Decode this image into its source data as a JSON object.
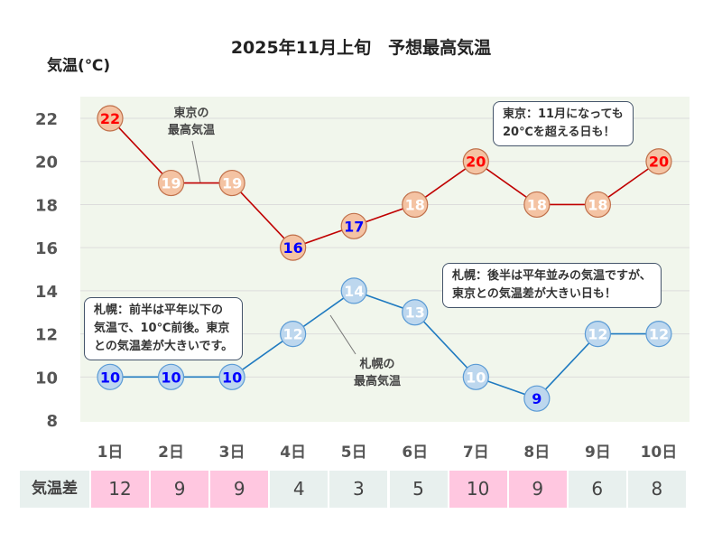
{
  "chart_data": {
    "type": "line",
    "title": "2025年11月上旬　予想最高気温",
    "ylabel": "気温(℃)",
    "ylim": [
      8,
      22
    ],
    "yticks": [
      8,
      10,
      12,
      14,
      16,
      18,
      20,
      22
    ],
    "grid": true,
    "categories": [
      "1日",
      "2日",
      "3日",
      "4日",
      "5日",
      "6日",
      "7日",
      "8日",
      "9日",
      "10日"
    ],
    "series": [
      {
        "name": "東京の\n最高気温",
        "values": [
          22,
          19,
          19,
          16,
          17,
          18,
          20,
          18,
          18,
          20
        ],
        "color": "#c00000",
        "marker_fill": "#f4c3a3",
        "marker_stroke": "#c0704a",
        "label_colors": [
          "#ff0000",
          "#ffffff",
          "#ffffff",
          "#0000ff",
          "#0000ff",
          "#ffffff",
          "#ff0000",
          "#ffffff",
          "#ffffff",
          "#ff0000"
        ]
      },
      {
        "name": "札幌の\n最高気温",
        "values": [
          10,
          10,
          10,
          12,
          14,
          13,
          10,
          9,
          12,
          12
        ],
        "color": "#1f7ac0",
        "marker_fill": "#bdd7ee",
        "marker_stroke": "#5b9bd5",
        "label_colors": [
          "#0000ff",
          "#0000ff",
          "#0000ff",
          "#ffffff",
          "#ffffff",
          "#ffffff",
          "#ffffff",
          "#0000ff",
          "#ffffff",
          "#ffffff"
        ]
      }
    ],
    "annotations": [
      "東京：11月になっても\n20℃を超える日も！",
      "札幌：前半は平年以下の\n気温で、10℃前後。東京\nとの気温差が大きいです。",
      "札幌：後半は平年並みの気温ですが、\n東京との気温差が大きい日も！"
    ],
    "table": {
      "label": "気温差",
      "values": [
        12,
        9,
        9,
        4,
        3,
        5,
        10,
        9,
        6,
        8
      ],
      "highlight_color": "#ffc7e0",
      "normal_color": "#e8f0ee",
      "highlight": [
        true,
        true,
        true,
        false,
        false,
        false,
        true,
        true,
        false,
        false
      ]
    }
  },
  "plot_bg": "#f1f6ec"
}
